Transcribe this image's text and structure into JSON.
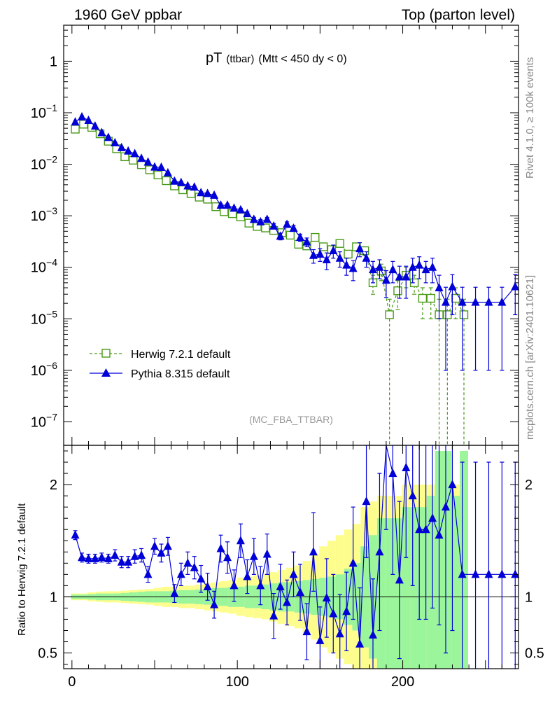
{
  "header": {
    "left": "1960 GeV ppbar",
    "right": "Top (parton level)"
  },
  "side": {
    "rivet": "Rivet 4.1.0, ≥ 100k events",
    "mcplots": "mcplots.cern.ch [arXiv:2401.10621]"
  },
  "chart_data": [
    {
      "type": "line",
      "panel": "main",
      "title_main": "pT",
      "title_sub": "(ttbar)",
      "title_cut": "(Mtt < 450 dy < 0)",
      "watermark": "(MC_FBA_TTBAR)",
      "yscale": "log",
      "xlim": [
        -5,
        270
      ],
      "ylim": [
        3.5e-08,
        5
      ],
      "yticks": [
        {
          "v": 1,
          "base": "1",
          "exp": ""
        },
        {
          "v": 0.1,
          "base": "10",
          "exp": "−1"
        },
        {
          "v": 0.01,
          "base": "10",
          "exp": "−2"
        },
        {
          "v": 0.001,
          "base": "10",
          "exp": "−3"
        },
        {
          "v": 0.0001,
          "base": "10",
          "exp": "−4"
        },
        {
          "v": 1e-05,
          "base": "10",
          "exp": "−5"
        },
        {
          "v": 1e-06,
          "base": "10",
          "exp": "−6"
        },
        {
          "v": 1e-07,
          "base": "10",
          "exp": "−7"
        }
      ],
      "legend_position": "bottom-left",
      "series": [
        {
          "name": "Herwig 7.2.1 default",
          "color": "#4a9a17",
          "marker": "open-square",
          "linestyle": "dashed",
          "x": [
            2,
            7,
            12,
            17,
            22,
            27,
            32,
            37,
            42,
            47,
            52,
            57,
            62,
            67,
            72,
            77,
            82,
            87,
            92,
            97,
            102,
            107,
            112,
            117,
            122,
            127,
            132,
            137,
            142,
            147,
            152,
            157,
            162,
            167,
            172,
            177,
            182,
            187,
            192,
            197,
            202,
            207,
            212,
            217,
            222,
            227,
            232,
            237
          ],
          "y": [
            0.048,
            0.06,
            0.052,
            0.039,
            0.028,
            0.02,
            0.014,
            0.012,
            0.0098,
            0.0078,
            0.0062,
            0.0048,
            0.0038,
            0.0032,
            0.0027,
            0.0023,
            0.0021,
            0.0015,
            0.0012,
            0.0011,
            0.00095,
            0.00072,
            0.00062,
            0.00058,
            0.00052,
            0.00047,
            0.00042,
            0.00028,
            0.00026,
            0.00038,
            0.00025,
            0.00022,
            0.00029,
            0.00018,
            0.00025,
            0.00021,
            5e-05,
            8.5e-05,
            1.2e-05,
            3.5e-05,
            7e-05,
            5e-05,
            2.5e-05,
            2.5e-05,
            1.2e-05,
            1.2e-05,
            2.5e-05,
            1.2e-05
          ],
          "err": [
            0.002,
            0.002,
            0.002,
            0.0015,
            0.001,
            0.0008,
            0.0006,
            0.0005,
            0.0004,
            0.0003,
            0.00025,
            0.0002,
            0.00016,
            0.00014,
            0.00012,
            0.0001,
            0.0001,
            8e-05,
            7e-05,
            6e-05,
            5e-05,
            4e-05,
            4e-05,
            4e-05,
            4e-05,
            4e-05,
            4e-05,
            3e-05,
            3e-05,
            4e-05,
            3e-05,
            3e-05,
            4e-05,
            3e-05,
            4e-05,
            4e-05,
            2e-05,
            3e-05,
            1.2e-05,
            2e-05,
            3e-05,
            2e-05,
            1.5e-05,
            1.5e-05,
            1.2e-05,
            1.2e-05,
            1.5e-05,
            1.2e-05
          ]
        },
        {
          "name": "Pythia 8.315 default",
          "color": "#0000d8",
          "marker": "filled-triangle",
          "linestyle": "solid",
          "x": [
            2,
            6,
            10,
            14,
            18,
            22,
            26,
            30,
            34,
            38,
            42,
            46,
            50,
            54,
            58,
            62,
            66,
            70,
            74,
            78,
            82,
            86,
            90,
            94,
            98,
            102,
            106,
            110,
            114,
            118,
            122,
            126,
            130,
            134,
            138,
            142,
            146,
            150,
            154,
            158,
            162,
            166,
            170,
            174,
            178,
            182,
            186,
            190,
            194,
            198,
            202,
            206,
            210,
            214,
            218,
            222,
            226,
            230,
            236,
            244,
            252,
            260,
            268
          ],
          "y": [
            0.066,
            0.083,
            0.071,
            0.055,
            0.041,
            0.033,
            0.026,
            0.021,
            0.018,
            0.016,
            0.013,
            0.011,
            0.0088,
            0.0087,
            0.0068,
            0.0047,
            0.0044,
            0.0038,
            0.0036,
            0.0028,
            0.0027,
            0.0025,
            0.0016,
            0.0016,
            0.0014,
            0.0013,
            0.0011,
            0.00085,
            0.00076,
            0.00085,
            0.00063,
            0.0004,
            0.00068,
            0.00057,
            0.00038,
            0.00031,
            0.00017,
            0.00018,
            0.00014,
            0.00021,
            0.00015,
            0.00011,
            9.5e-05,
            0.00023,
            0.00015,
            9e-05,
            0.0001,
            5.6e-05,
            9e-05,
            6.5e-05,
            6.5e-05,
            0.0001,
            0.00011,
            9e-05,
            0.0001,
            4e-05,
            2.1e-05,
            4.2e-05,
            2.1e-05,
            2.1e-05,
            2.1e-05,
            2.1e-05,
            4.2e-05
          ],
          "err": [
            0.003,
            0.004,
            0.003,
            0.002,
            0.0015,
            0.0012,
            0.001,
            0.0008,
            0.0007,
            0.0006,
            0.0005,
            0.0004,
            0.0003,
            0.0003,
            0.00025,
            0.0002,
            0.0002,
            0.00018,
            0.00016,
            0.00014,
            0.00014,
            0.00012,
            0.0001,
            0.0001,
            0.0001,
            0.0001,
            9e-05,
            8e-05,
            8e-05,
            8e-05,
            7e-05,
            6e-05,
            8e-05,
            7e-05,
            6e-05,
            6e-05,
            5e-05,
            5e-05,
            5e-05,
            6e-05,
            5e-05,
            4e-05,
            4e-05,
            7e-05,
            5e-05,
            4e-05,
            4e-05,
            3e-05,
            4e-05,
            4e-05,
            4e-05,
            5e-05,
            5e-05,
            4e-05,
            5e-05,
            3e-05,
            2e-05,
            3e-05,
            2e-05,
            2e-05,
            2e-05,
            2e-05,
            3e-05
          ]
        }
      ]
    },
    {
      "type": "line",
      "panel": "ratio",
      "ylabel": "Ratio to Herwig 7.2.1 default",
      "xlim": [
        -5,
        270
      ],
      "ylim": [
        0.36,
        2.35
      ],
      "yticks": [
        0.5,
        1,
        2
      ],
      "ytick_labels": [
        "0.5",
        "1",
        "2"
      ],
      "xticks": [
        0,
        100,
        200
      ],
      "xtick_labels": [
        "0",
        "100",
        "200"
      ],
      "reference_line": 1,
      "band_x": [
        2,
        7,
        12,
        17,
        22,
        27,
        32,
        37,
        42,
        47,
        52,
        57,
        62,
        67,
        72,
        77,
        82,
        87,
        92,
        97,
        102,
        107,
        112,
        117,
        122,
        127,
        132,
        137,
        142,
        147,
        152,
        157,
        162,
        167,
        172,
        177,
        182,
        187,
        192,
        197,
        202,
        207,
        212,
        217,
        222,
        227,
        232,
        237
      ],
      "band_inner": [
        0.02,
        0.02,
        0.025,
        0.03,
        0.03,
        0.03,
        0.035,
        0.04,
        0.045,
        0.05,
        0.05,
        0.05,
        0.055,
        0.06,
        0.06,
        0.065,
        0.07,
        0.08,
        0.08,
        0.09,
        0.09,
        0.1,
        0.1,
        0.11,
        0.12,
        0.13,
        0.13,
        0.14,
        0.15,
        0.16,
        0.17,
        0.18,
        0.2,
        0.25,
        0.3,
        0.45,
        0.55,
        0.7,
        0.7,
        0.7,
        0.8,
        0.8,
        0.8,
        0.9,
        1.3,
        1.3,
        0.9,
        1.3
      ],
      "band_outer": [
        0.03,
        0.03,
        0.04,
        0.045,
        0.05,
        0.05,
        0.055,
        0.06,
        0.065,
        0.07,
        0.08,
        0.09,
        0.09,
        0.1,
        0.1,
        0.11,
        0.12,
        0.13,
        0.14,
        0.15,
        0.17,
        0.18,
        0.19,
        0.2,
        0.22,
        0.24,
        0.26,
        0.28,
        0.32,
        0.38,
        0.45,
        0.5,
        0.55,
        0.6,
        0.65,
        0.8,
        0.85,
        0.9,
        0.9,
        0.9,
        1.0,
        1.0,
        1.0,
        1.0,
        1.3,
        1.3,
        1.0,
        1.3
      ],
      "ratio_x": [
        2,
        6,
        10,
        14,
        18,
        22,
        26,
        30,
        34,
        38,
        42,
        46,
        50,
        54,
        58,
        62,
        66,
        70,
        74,
        78,
        82,
        86,
        90,
        94,
        98,
        102,
        106,
        110,
        114,
        118,
        122,
        126,
        130,
        134,
        138,
        142,
        146,
        150,
        154,
        158,
        162,
        166,
        170,
        174,
        178,
        182,
        186,
        190,
        194,
        198,
        202,
        206,
        210,
        214,
        218,
        222,
        226,
        230,
        236,
        244,
        252,
        260,
        268
      ],
      "ratio_y": [
        1.55,
        1.35,
        1.34,
        1.34,
        1.35,
        1.34,
        1.37,
        1.31,
        1.31,
        1.36,
        1.37,
        1.2,
        1.45,
        1.39,
        1.45,
        1.03,
        1.2,
        1.3,
        1.26,
        1.16,
        1.09,
        0.93,
        1.43,
        1.35,
        1.1,
        1.5,
        1.18,
        1.36,
        1.1,
        1.38,
        0.83,
        1.09,
        0.95,
        1.2,
        1.04,
        0.69,
        1.4,
        0.61,
        0.99,
        0.85,
        0.67,
        0.87,
        1.3,
        0.58,
        1.85,
        0.66,
        1.4,
        2.4,
        2.1,
        1.15,
        2.15,
        1.9,
        1.6,
        1.6,
        1.7,
        1.55,
        1.8,
        2.0,
        1.2,
        1.2,
        1.2,
        1.2,
        1.2
      ],
      "ratio_err": [
        0.04,
        0.04,
        0.04,
        0.04,
        0.04,
        0.04,
        0.05,
        0.05,
        0.05,
        0.06,
        0.06,
        0.07,
        0.07,
        0.08,
        0.08,
        0.08,
        0.1,
        0.1,
        0.1,
        0.12,
        0.12,
        0.12,
        0.12,
        0.14,
        0.14,
        0.15,
        0.15,
        0.16,
        0.17,
        0.18,
        0.2,
        0.2,
        0.2,
        0.2,
        0.25,
        0.25,
        0.35,
        0.3,
        0.35,
        0.35,
        0.35,
        0.35,
        0.5,
        0.5,
        0.5,
        0.5,
        0.7,
        0.8,
        0.9,
        0.7,
        0.8,
        0.8,
        0.8,
        0.8,
        0.8,
        0.8,
        1.3,
        1.3,
        1.0,
        1.0,
        1.0,
        1.0,
        1.0
      ]
    }
  ]
}
